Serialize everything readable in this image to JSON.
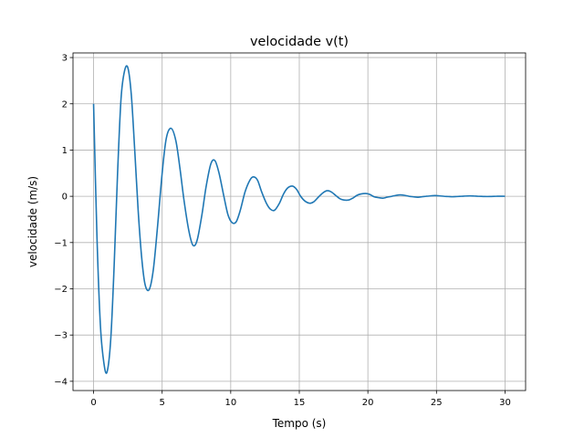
{
  "chart_data": {
    "type": "line",
    "title": "velocidade v(t)",
    "xlabel": "Tempo (s)",
    "ylabel": "velocidade (m/s)",
    "xlim": [
      -1.5,
      31.5
    ],
    "ylim": [
      -4.2,
      3.1
    ],
    "xticks": [
      0,
      5,
      10,
      15,
      20,
      25,
      30
    ],
    "yticks": [
      -4,
      -3,
      -2,
      -1,
      0,
      1,
      2,
      3
    ],
    "xtick_labels": [
      "0",
      "5",
      "10",
      "15",
      "20",
      "25",
      "30"
    ],
    "ytick_labels": [
      "−4",
      "−3",
      "−2",
      "−1",
      "0",
      "1",
      "2",
      "3"
    ],
    "grid": true,
    "line_color": "#1f77b4",
    "series": [
      {
        "x": [
          0,
          0.25,
          0.5,
          0.75,
          0.98,
          1.25,
          1.5,
          1.75,
          2.0,
          2.25,
          2.5,
          2.75,
          3.0,
          3.25,
          3.5,
          3.75,
          4.05,
          4.35,
          4.65,
          5.0,
          5.3,
          5.65,
          6.0,
          6.3,
          6.6,
          6.95,
          7.25,
          7.55,
          7.9,
          8.2,
          8.55,
          8.85,
          9.15,
          9.5,
          9.8,
          10.1,
          10.4,
          10.7,
          11.05,
          11.4,
          11.65,
          11.95,
          12.25,
          12.6,
          12.9,
          13.2,
          13.55,
          13.85,
          14.15,
          14.5,
          14.8,
          15.1,
          15.4,
          15.75,
          16.05,
          16.35,
          16.7,
          17.0,
          17.3,
          17.65,
          17.95,
          18.25,
          18.6,
          18.9,
          19.2,
          19.5,
          19.85,
          20.15,
          20.45,
          20.8,
          21.1,
          21.4,
          21.75,
          22.05,
          22.35,
          22.7,
          23.0,
          23.3,
          23.65,
          23.95,
          24.25,
          24.6,
          24.9,
          25.2,
          25.55,
          25.85,
          26.15,
          26.5,
          26.8,
          27.1,
          27.45,
          27.75,
          28.05,
          28.4,
          28.7,
          29.0,
          29.35,
          29.65,
          30.0
        ],
        "y": [
          2.0,
          -0.9,
          -2.8,
          -3.6,
          -3.8,
          -3.1,
          -1.5,
          0.5,
          2.1,
          2.7,
          2.78,
          2.2,
          1.0,
          -0.3,
          -1.3,
          -1.9,
          -2.02,
          -1.6,
          -0.7,
          0.5,
          1.25,
          1.47,
          1.2,
          0.6,
          -0.1,
          -0.75,
          -1.06,
          -0.95,
          -0.4,
          0.2,
          0.7,
          0.77,
          0.5,
          0.0,
          -0.4,
          -0.57,
          -0.55,
          -0.3,
          0.1,
          0.35,
          0.42,
          0.35,
          0.1,
          -0.15,
          -0.28,
          -0.3,
          -0.15,
          0.05,
          0.18,
          0.22,
          0.15,
          0.0,
          -0.1,
          -0.15,
          -0.12,
          -0.03,
          0.07,
          0.12,
          0.1,
          0.02,
          -0.05,
          -0.08,
          -0.08,
          -0.04,
          0.02,
          0.05,
          0.06,
          0.04,
          -0.01,
          -0.03,
          -0.04,
          -0.02,
          0.0,
          0.02,
          0.03,
          0.02,
          0.0,
          -0.01,
          -0.02,
          -0.01,
          0.0,
          0.01,
          0.015,
          0.01,
          0.0,
          -0.005,
          -0.01,
          -0.005,
          0.0,
          0.005,
          0.008,
          0.005,
          0.0,
          -0.003,
          -0.005,
          -0.003,
          0.0,
          0.002,
          0.0
        ]
      }
    ]
  }
}
